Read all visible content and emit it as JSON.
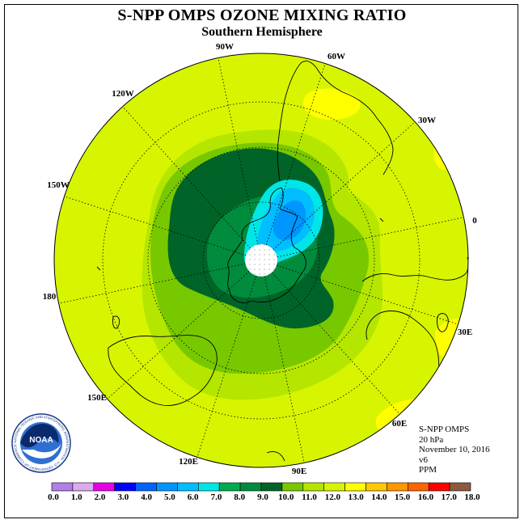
{
  "header": {
    "title": "S-NPP OMPS OZONE MIXING RATIO",
    "subtitle": "Southern Hemisphere"
  },
  "map": {
    "projection": "polar-stereographic-south",
    "longitude_labels": [
      "90W",
      "60W",
      "30W",
      "0",
      "30E",
      "60E",
      "90E",
      "120E",
      "150E",
      "180",
      "150W",
      "120W"
    ],
    "polar_cap_color": "#ffffff"
  },
  "info": {
    "instrument": "S-NPP OMPS",
    "level": "20 hPa",
    "date": "November 10, 2016",
    "version": "v6",
    "units": "PPM"
  },
  "logo": {
    "text": "NOAA",
    "ring_text": "NATIONAL OCEANIC AND ATMOSPHERIC ADMINISTRATION · U.S. DEPARTMENT OF COMMERCE"
  },
  "colorbar": {
    "colors": [
      "#b27fe6",
      "#dcaaf0",
      "#e600e6",
      "#0000ff",
      "#0064ff",
      "#0096ff",
      "#00beff",
      "#00e6e6",
      "#00aa50",
      "#008c3c",
      "#006428",
      "#78c800",
      "#b4e600",
      "#d7f500",
      "#ffff00",
      "#ffc800",
      "#ff9600",
      "#ff6400",
      "#ff0000",
      "#8c5a3c"
    ],
    "tick_labels": [
      "0.0",
      "1.0",
      "2.0",
      "3.0",
      "4.0",
      "5.0",
      "6.0",
      "7.0",
      "8.0",
      "9.0",
      "10.0",
      "11.0",
      "12.0",
      "13.0",
      "14.0",
      "15.0",
      "16.0",
      "17.0",
      "18.0"
    ],
    "range": [
      0,
      18
    ]
  }
}
